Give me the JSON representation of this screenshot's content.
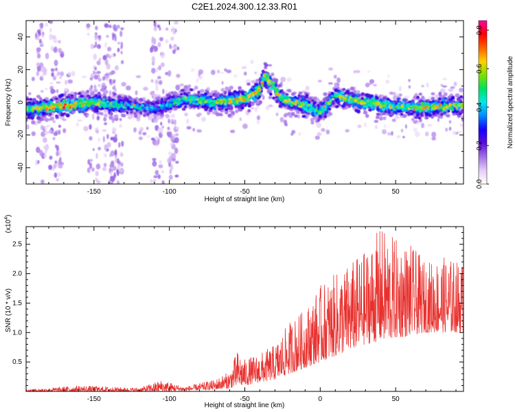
{
  "title": "C2E1.2024.300.12.33.R01",
  "colors": {
    "snr_line": "#e8312e",
    "background": "#ffffff"
  },
  "chart_data": [
    {
      "type": "heatmap",
      "xlabel": "Height of straight line (km)",
      "ylabel": "Frequency (Hz)",
      "xlim": [
        -195,
        95
      ],
      "ylim": [
        -50,
        50
      ],
      "xticks": [
        "-150",
        "-100",
        "-50",
        "0",
        "50"
      ],
      "yticks": [
        "-40",
        "-20",
        "0",
        "20",
        "40"
      ],
      "colorbar": {
        "label": "Normalized spectral amplitude",
        "range": [
          0,
          0.85
        ],
        "ticks": [
          "0.0",
          "0.2",
          "0.4",
          "0.6",
          "0.8"
        ],
        "colormap": [
          "#ffffff",
          "#e4cdf6",
          "#a26fe6",
          "#5a0fd8",
          "#1500ff",
          "#0088ff",
          "#00e8e8",
          "#00e060",
          "#7ee000",
          "#ffd000",
          "#ff6000",
          "#ff0000",
          "#ff00a0"
        ]
      },
      "ridge": {
        "description_points": [
          {
            "x": -190,
            "f": -4,
            "amp": 0.45
          },
          {
            "x": -170,
            "f": -2,
            "amp": 0.55
          },
          {
            "x": -150,
            "f": 0,
            "amp": 0.45
          },
          {
            "x": -130,
            "f": -2,
            "amp": 0.35
          },
          {
            "x": -110,
            "f": -4,
            "amp": 0.3
          },
          {
            "x": -90,
            "f": 2,
            "amp": 0.4
          },
          {
            "x": -70,
            "f": 0,
            "amp": 0.45
          },
          {
            "x": -50,
            "f": 2,
            "amp": 0.5
          },
          {
            "x": -40,
            "f": 8,
            "amp": 0.5
          },
          {
            "x": -37,
            "f": 16,
            "amp": 0.55
          },
          {
            "x": -25,
            "f": 2,
            "amp": 0.45
          },
          {
            "x": -10,
            "f": -2,
            "amp": 0.45
          },
          {
            "x": 0,
            "f": -6,
            "amp": 0.4
          },
          {
            "x": 10,
            "f": 4,
            "amp": 0.45
          },
          {
            "x": 30,
            "f": 0,
            "amp": 0.45
          },
          {
            "x": 50,
            "f": -3,
            "amp": 0.4
          },
          {
            "x": 70,
            "f": -3,
            "amp": 0.5
          },
          {
            "x": 92,
            "f": -2,
            "amp": 0.45
          }
        ],
        "scatter_bands_x": [
          -185,
          -175,
          -150,
          -140,
          -135,
          -108,
          -98
        ]
      }
    },
    {
      "type": "line",
      "xlabel": "Height of straight line (km)",
      "ylabel": "SNR (10 * v/v)",
      "y_scale_label": "(x10^4)",
      "xlim": [
        -195,
        95
      ],
      "ylim": [
        0,
        2.8
      ],
      "xticks": [
        "-150",
        "-100",
        "-50",
        "0",
        "50"
      ],
      "yticks": [
        "0.5",
        "1.0",
        "1.5",
        "2.0",
        "2.5"
      ],
      "series": [
        {
          "envelope_x": [
            -195,
            -160,
            -120,
            -105,
            -90,
            -70,
            -60,
            -55,
            -50,
            -40,
            -30,
            -20,
            -10,
            0,
            10,
            20,
            30,
            40,
            50,
            60,
            70,
            80,
            95
          ],
          "envelope_low": [
            0.0,
            0.0,
            0.0,
            0.0,
            0.01,
            0.03,
            0.05,
            0.08,
            0.1,
            0.15,
            0.2,
            0.3,
            0.4,
            0.5,
            0.6,
            0.7,
            0.8,
            0.85,
            0.9,
            0.95,
            1.0,
            1.0,
            1.0
          ],
          "envelope_high": [
            0.03,
            0.1,
            0.06,
            0.2,
            0.08,
            0.2,
            0.35,
            0.7,
            0.55,
            0.65,
            0.8,
            1.2,
            1.4,
            1.8,
            2.0,
            2.2,
            2.4,
            2.8,
            2.6,
            2.5,
            2.2,
            2.3,
            2.2
          ]
        }
      ]
    }
  ]
}
